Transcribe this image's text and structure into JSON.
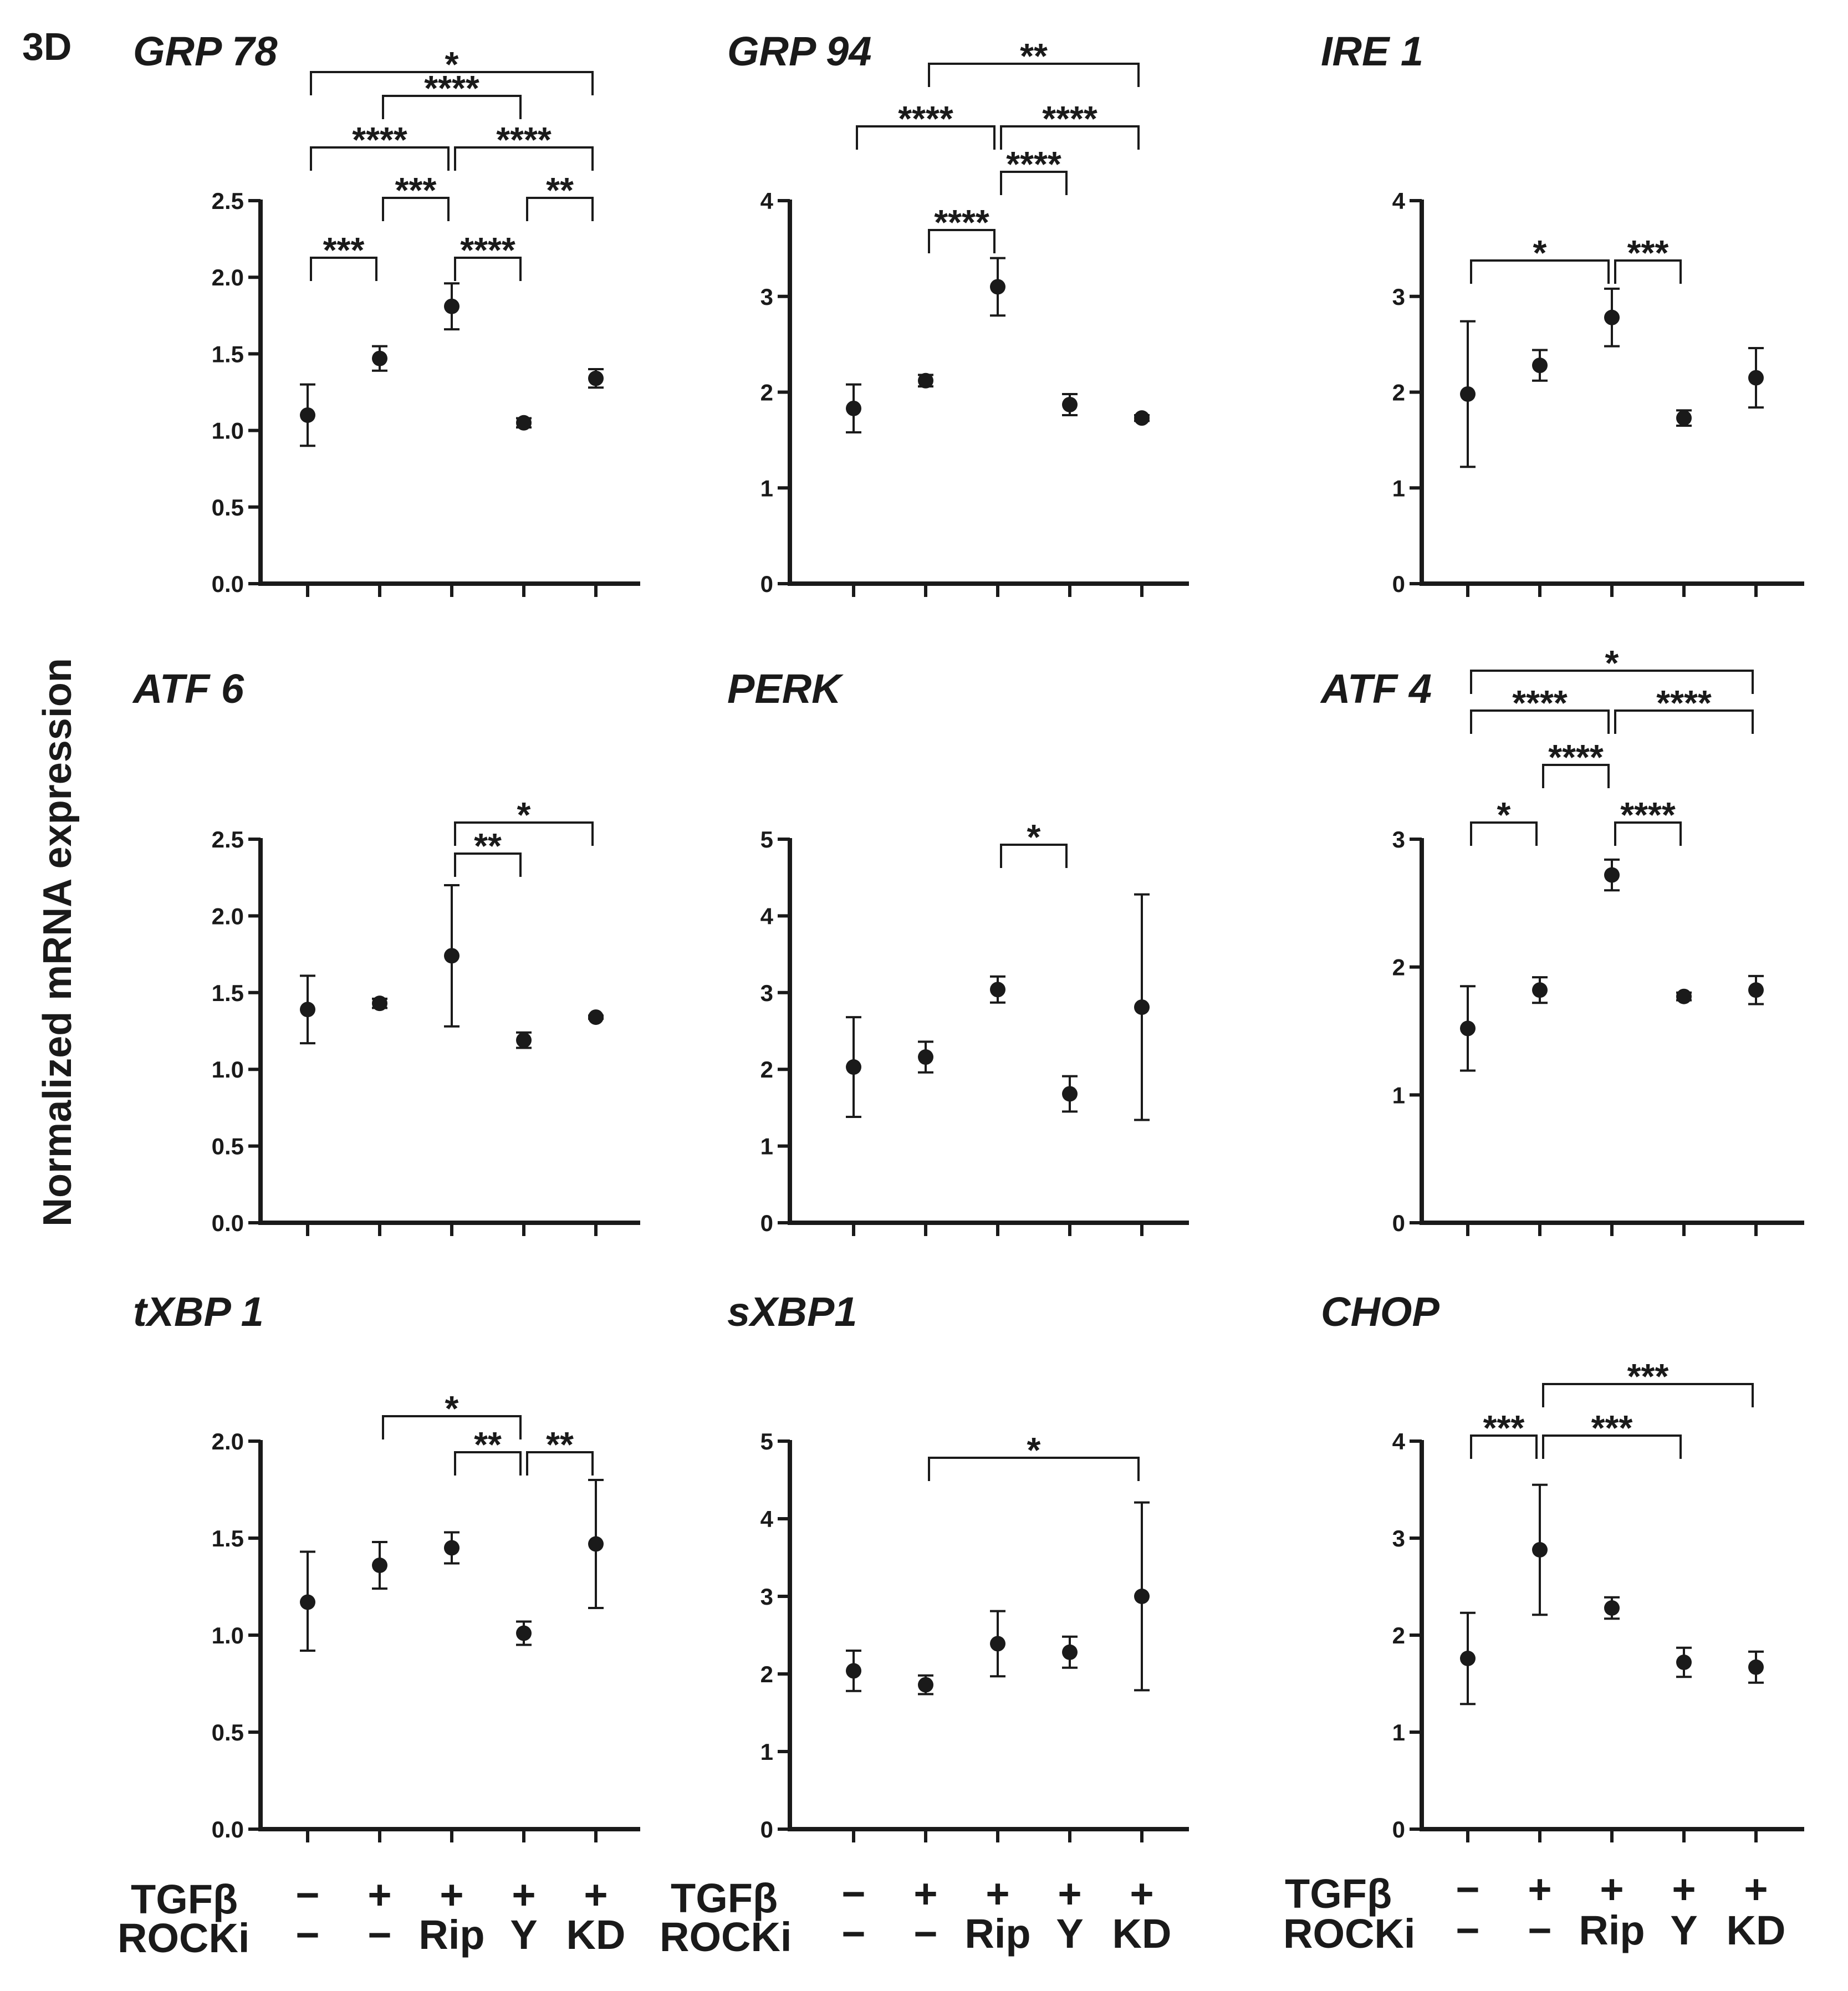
{
  "figure_label": "3D",
  "ylabel": "Normalized mRNA expression",
  "conditions": {
    "row1_label": "TGFβ",
    "row2_label": "ROCKi",
    "row1": [
      "−",
      "+",
      "+",
      "+",
      "+"
    ],
    "row2": [
      "−",
      "−",
      "Rip",
      "Y",
      "KD"
    ]
  },
  "chart_data": [
    {
      "type": "scatter",
      "title": "GRP 78",
      "xlabel": "",
      "ylabel": "Normalized mRNA expression",
      "ylim": [
        0,
        2.5
      ],
      "yticks": [
        0,
        0.5,
        1,
        1.5,
        2,
        2.5
      ],
      "ytick_labels": [
        "0.0",
        "0.5",
        "1.0",
        "1.5",
        "2.0",
        "2.5"
      ],
      "means": [
        1.1,
        1.47,
        1.81,
        1.05,
        1.34
      ],
      "err_low": [
        0.9,
        1.39,
        1.66,
        1.02,
        1.28
      ],
      "err_high": [
        1.3,
        1.55,
        1.96,
        1.08,
        1.4
      ],
      "comparisons": [
        {
          "from": 1,
          "to": 2,
          "stars": "***"
        },
        {
          "from": 3,
          "to": 4,
          "stars": "****"
        },
        {
          "from": 2,
          "to": 3,
          "stars": "***"
        },
        {
          "from": 4,
          "to": 5,
          "stars": "**"
        },
        {
          "from": 1,
          "to": 3,
          "stars": "****"
        },
        {
          "from": 3,
          "to": 5,
          "stars": "****"
        },
        {
          "from": 2,
          "to": 4,
          "stars": "****"
        },
        {
          "from": 1,
          "to": 5,
          "stars": "*"
        }
      ]
    },
    {
      "type": "scatter",
      "title": "GRP 94",
      "xlabel": "",
      "ylabel": "Normalized mRNA expression",
      "ylim": [
        0,
        4
      ],
      "yticks": [
        0,
        1,
        2,
        3,
        4
      ],
      "ytick_labels": [
        "0",
        "1",
        "2",
        "3",
        "4"
      ],
      "means": [
        1.83,
        2.12,
        3.1,
        1.87,
        1.73
      ],
      "err_low": [
        1.58,
        2.06,
        2.8,
        1.76,
        1.7
      ],
      "err_high": [
        2.08,
        2.18,
        3.4,
        1.98,
        1.76
      ],
      "comparisons": [
        {
          "from": 2,
          "to": 3,
          "stars": "****"
        },
        {
          "from": 3,
          "to": 4,
          "stars": "****"
        },
        {
          "from": 1,
          "to": 3,
          "stars": "****"
        },
        {
          "from": 3,
          "to": 5,
          "stars": "****"
        },
        {
          "from": 2,
          "to": 5,
          "stars": "**"
        }
      ]
    },
    {
      "type": "scatter",
      "title": "IRE 1",
      "xlabel": "",
      "ylabel": "Normalized mRNA expression",
      "ylim": [
        0,
        4
      ],
      "yticks": [
        0,
        1,
        2,
        3,
        4
      ],
      "ytick_labels": [
        "0",
        "1",
        "2",
        "3",
        "4"
      ],
      "means": [
        1.98,
        2.28,
        2.78,
        1.73,
        2.15
      ],
      "err_low": [
        1.22,
        2.12,
        2.48,
        1.65,
        1.84
      ],
      "err_high": [
        2.74,
        2.44,
        3.08,
        1.81,
        2.46
      ],
      "comparisons": [
        {
          "from": 1,
          "to": 3,
          "stars": "*"
        },
        {
          "from": 3,
          "to": 4,
          "stars": "***"
        }
      ]
    },
    {
      "type": "scatter",
      "title": "ATF 6",
      "xlabel": "",
      "ylabel": "Normalized mRNA expression",
      "ylim": [
        0,
        2.5
      ],
      "yticks": [
        0,
        0.5,
        1,
        1.5,
        2,
        2.5
      ],
      "ytick_labels": [
        "0.0",
        "0.5",
        "1.0",
        "1.5",
        "2.0",
        "2.5"
      ],
      "means": [
        1.39,
        1.43,
        1.74,
        1.19,
        1.34
      ],
      "err_low": [
        1.17,
        1.4,
        1.28,
        1.14,
        1.33
      ],
      "err_high": [
        1.61,
        1.46,
        2.2,
        1.24,
        1.35
      ],
      "comparisons": [
        {
          "from": 3,
          "to": 4,
          "stars": "**"
        },
        {
          "from": 3,
          "to": 5,
          "stars": "*"
        }
      ]
    },
    {
      "type": "scatter",
      "title": "PERK",
      "xlabel": "",
      "ylabel": "Normalized mRNA expression",
      "ylim": [
        0,
        5
      ],
      "yticks": [
        0,
        1,
        2,
        3,
        4,
        5
      ],
      "ytick_labels": [
        "0",
        "1",
        "2",
        "3",
        "4",
        "5"
      ],
      "means": [
        2.03,
        2.16,
        3.04,
        1.68,
        2.81
      ],
      "err_low": [
        1.38,
        1.96,
        2.87,
        1.45,
        1.34
      ],
      "err_high": [
        2.68,
        2.36,
        3.21,
        1.91,
        4.28
      ],
      "comparisons": [
        {
          "from": 3,
          "to": 4,
          "stars": "*"
        }
      ]
    },
    {
      "type": "scatter",
      "title": "ATF 4",
      "xlabel": "",
      "ylabel": "Normalized mRNA expression",
      "ylim": [
        0,
        3
      ],
      "yticks": [
        0,
        1,
        2,
        3
      ],
      "ytick_labels": [
        "0",
        "1",
        "2",
        "3"
      ],
      "means": [
        1.52,
        1.82,
        2.72,
        1.77,
        1.82
      ],
      "err_low": [
        1.19,
        1.72,
        2.6,
        1.74,
        1.71
      ],
      "err_high": [
        1.85,
        1.92,
        2.84,
        1.8,
        1.93
      ],
      "comparisons": [
        {
          "from": 1,
          "to": 2,
          "stars": "*"
        },
        {
          "from": 3,
          "to": 4,
          "stars": "****"
        },
        {
          "from": 2,
          "to": 3,
          "stars": "****"
        },
        {
          "from": 1,
          "to": 3,
          "stars": "****"
        },
        {
          "from": 3,
          "to": 5,
          "stars": "****"
        },
        {
          "from": 1,
          "to": 5,
          "stars": "*"
        }
      ]
    },
    {
      "type": "scatter",
      "title": "tXBP 1",
      "xlabel": "",
      "ylabel": "Normalized mRNA expression",
      "ylim": [
        0,
        2
      ],
      "yticks": [
        0,
        0.5,
        1,
        1.5,
        2
      ],
      "ytick_labels": [
        "0.0",
        "0.5",
        "1.0",
        "1.5",
        "2.0"
      ],
      "means": [
        1.17,
        1.36,
        1.45,
        1.01,
        1.47
      ],
      "err_low": [
        0.92,
        1.24,
        1.37,
        0.95,
        1.14
      ],
      "err_high": [
        1.43,
        1.48,
        1.53,
        1.07,
        1.8
      ],
      "comparisons": [
        {
          "from": 3,
          "to": 4,
          "stars": "**"
        },
        {
          "from": 4,
          "to": 5,
          "stars": "**"
        },
        {
          "from": 2,
          "to": 4,
          "stars": "*"
        }
      ]
    },
    {
      "type": "scatter",
      "title": "sXBP1",
      "xlabel": "",
      "ylabel": "Normalized mRNA expression",
      "ylim": [
        0,
        5
      ],
      "yticks": [
        0,
        1,
        2,
        3,
        4,
        5
      ],
      "ytick_labels": [
        "0",
        "1",
        "2",
        "3",
        "4",
        "5"
      ],
      "means": [
        2.04,
        1.86,
        2.39,
        2.28,
        3.0
      ],
      "err_low": [
        1.78,
        1.74,
        1.97,
        2.08,
        1.79
      ],
      "err_high": [
        2.3,
        1.98,
        2.81,
        2.48,
        4.21
      ],
      "comparisons": [
        {
          "from": 2,
          "to": 5,
          "stars": "*"
        }
      ]
    },
    {
      "type": "scatter",
      "title": "CHOP",
      "xlabel": "",
      "ylabel": "Normalized mRNA expression",
      "ylim": [
        0,
        4
      ],
      "yticks": [
        0,
        1,
        2,
        3,
        4
      ],
      "ytick_labels": [
        "0",
        "1",
        "2",
        "3",
        "4"
      ],
      "means": [
        1.76,
        2.88,
        2.28,
        1.72,
        1.67
      ],
      "err_low": [
        1.29,
        2.21,
        2.17,
        1.57,
        1.51
      ],
      "err_high": [
        2.23,
        3.55,
        2.39,
        1.87,
        1.83
      ],
      "comparisons": [
        {
          "from": 1,
          "to": 2,
          "stars": "***"
        },
        {
          "from": 2,
          "to": 4,
          "stars": "***"
        },
        {
          "from": 2,
          "to": 5,
          "stars": "***"
        }
      ]
    }
  ]
}
